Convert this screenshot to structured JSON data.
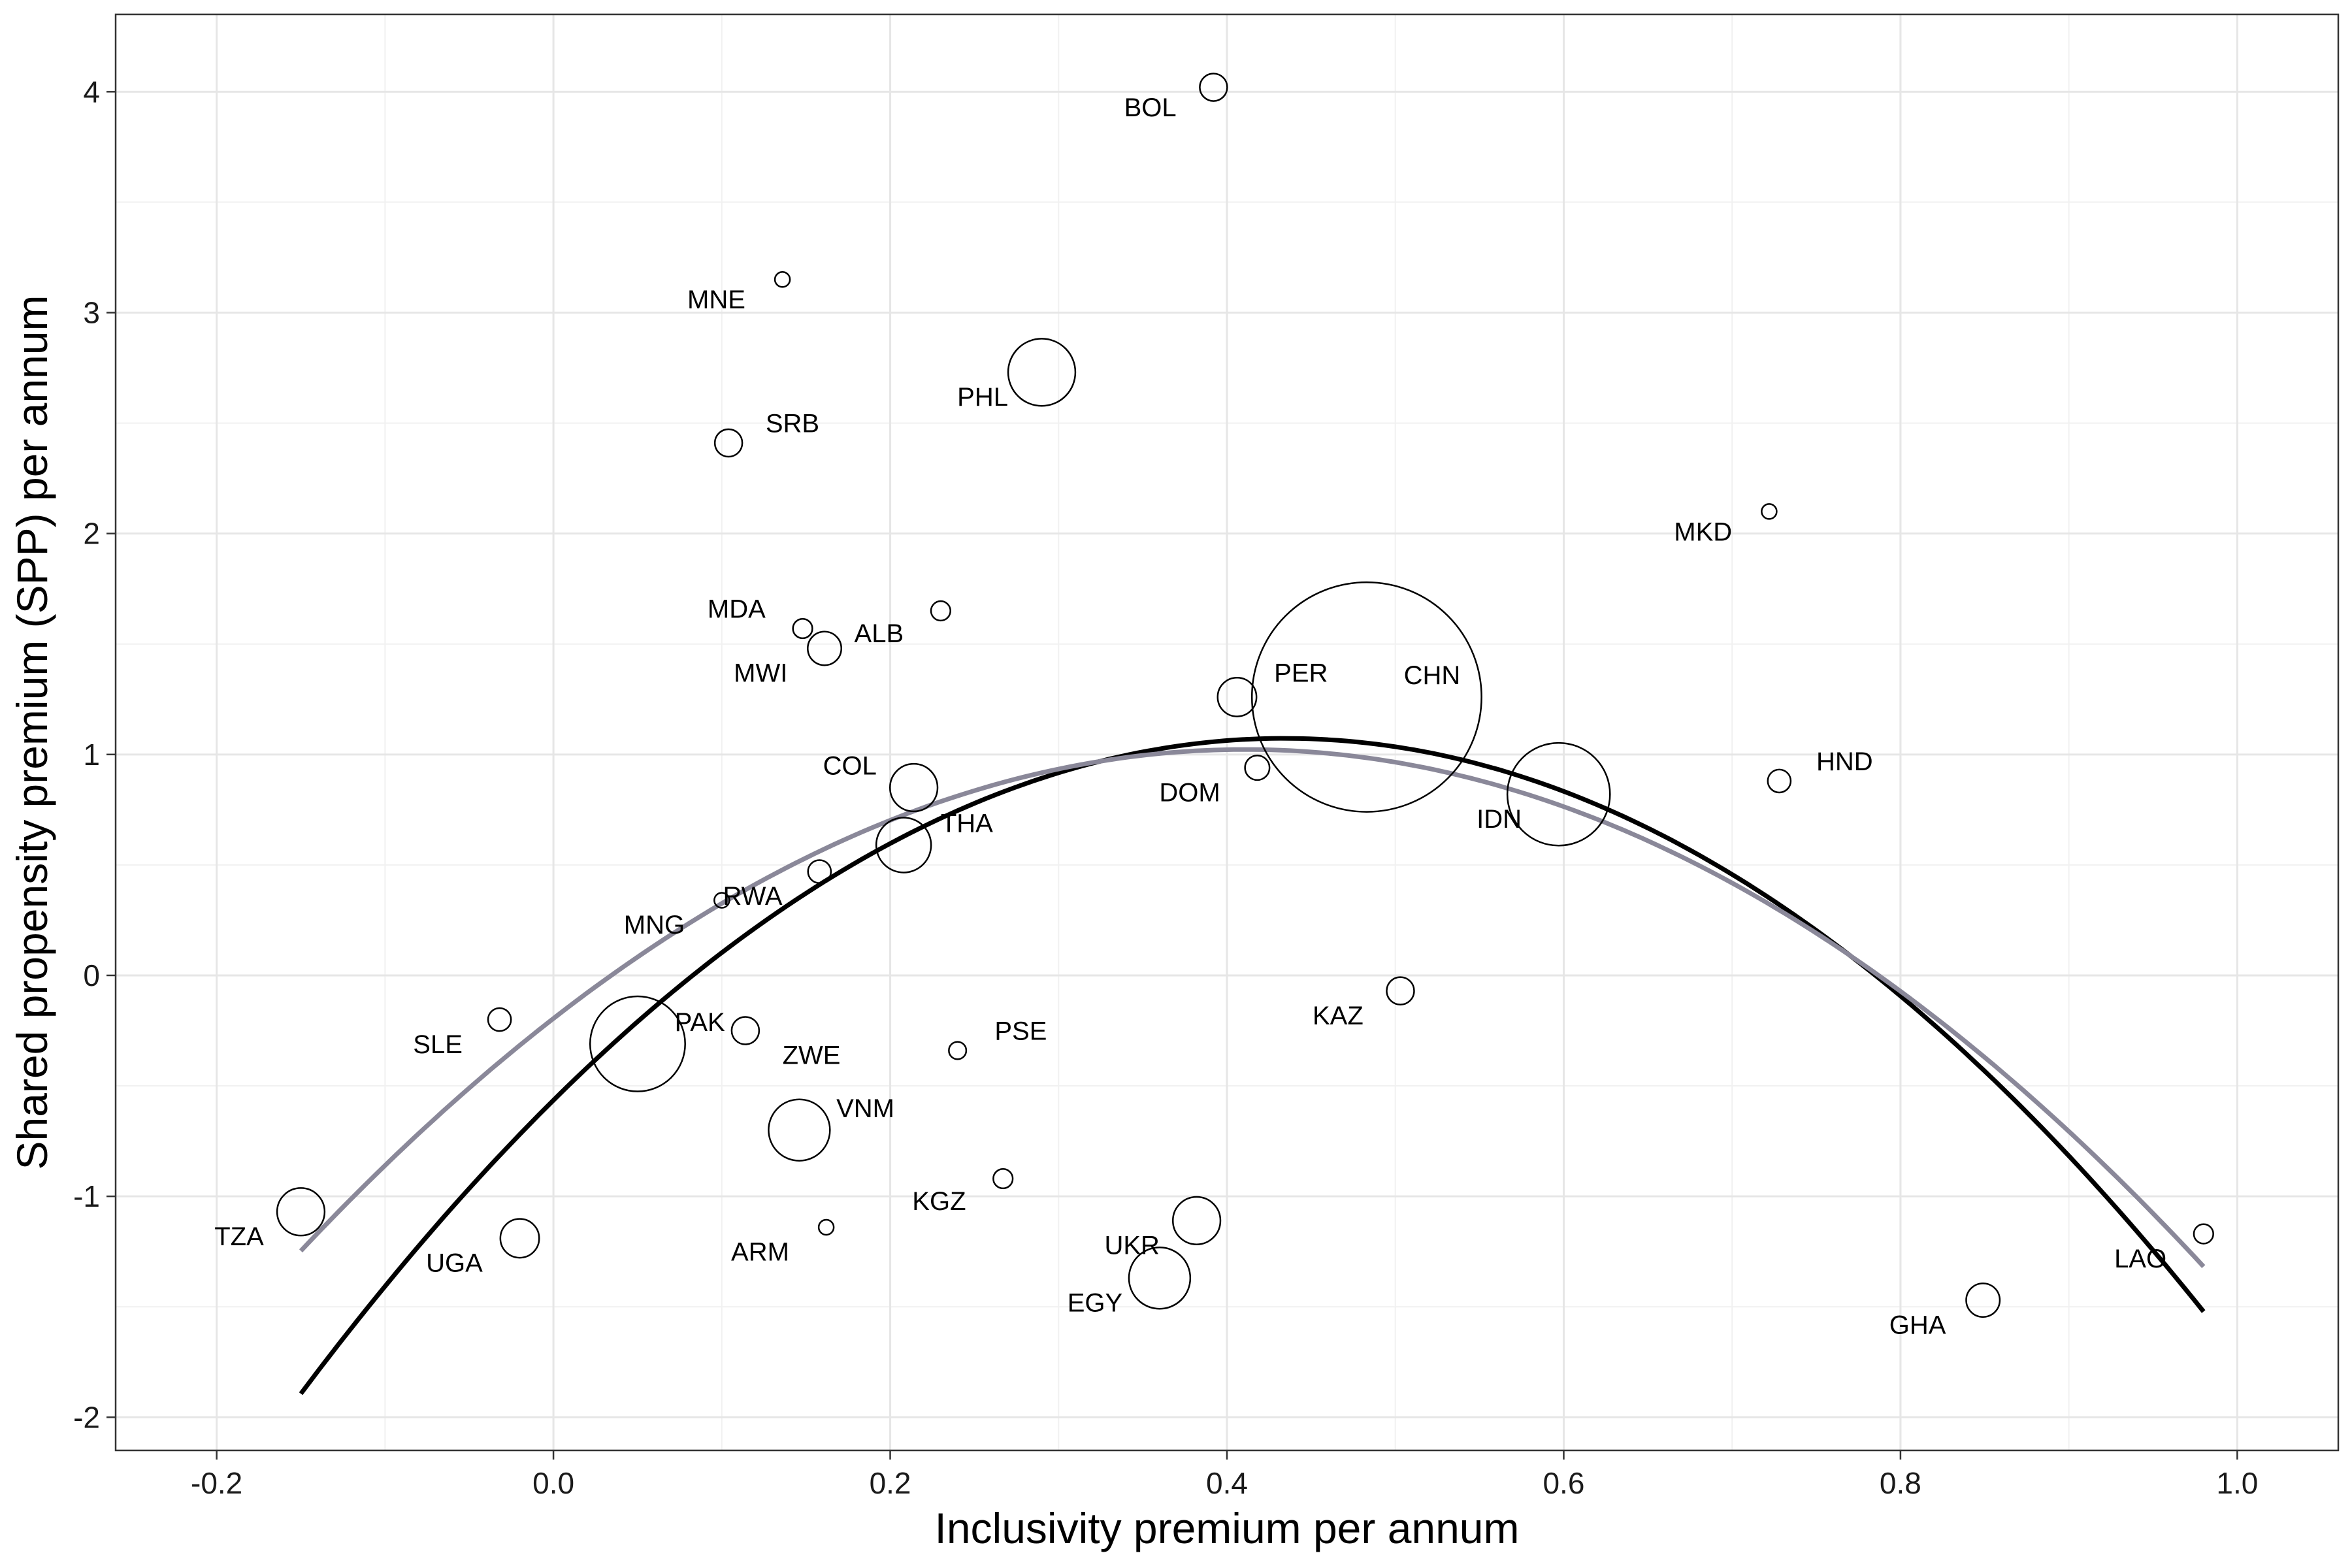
{
  "chart_data": {
    "type": "scatter",
    "title": "",
    "xlabel": "Inclusivity premium per annum",
    "ylabel": "Shared propensity premium (SPP) per annum",
    "xlim": [
      -0.26,
      1.06
    ],
    "ylim": [
      -2.15,
      4.35
    ],
    "x_ticks": [
      -0.2,
      0.0,
      0.2,
      0.4,
      0.6,
      0.8,
      1.0
    ],
    "x_tick_labels": [
      "-0.2",
      "0.0",
      "0.2",
      "0.4",
      "0.6",
      "0.8",
      "1.0"
    ],
    "y_ticks": [
      -2,
      -1,
      0,
      1,
      2,
      3,
      4
    ],
    "y_tick_labels": [
      "-2",
      "-1",
      "0",
      "1",
      "2",
      "3",
      "4"
    ],
    "grid": true,
    "legend": "none",
    "colors": {
      "black_fit": "#000000",
      "grey_fit": "#8a8899",
      "point_stroke": "#000000"
    },
    "points": [
      {
        "label": "BOL",
        "x": 0.392,
        "y": 4.02,
        "size": 1,
        "label_dx": -0.022,
        "label_dy": -0.09
      },
      {
        "label": "MNE",
        "x": 0.136,
        "y": 3.15,
        "size": 0.3,
        "label_dx": -0.022,
        "label_dy": -0.09
      },
      {
        "label": "PHL",
        "x": 0.29,
        "y": 2.73,
        "size": 6,
        "label_dx": -0.02,
        "label_dy": -0.11
      },
      {
        "label": "SRB",
        "x": 0.104,
        "y": 2.41,
        "size": 1,
        "label_dx": 0.022,
        "label_dy": 0.09
      },
      {
        "label": "MKD",
        "x": 0.722,
        "y": 2.1,
        "size": 0.3,
        "label_dx": -0.022,
        "label_dy": -0.09
      },
      {
        "label": "ALB",
        "x": 0.23,
        "y": 1.65,
        "size": 0.5,
        "label_dx": -0.022,
        "label_dy": -0.1
      },
      {
        "label": "MDA",
        "x": 0.148,
        "y": 1.57,
        "size": 0.5,
        "label_dx": -0.022,
        "label_dy": 0.09
      },
      {
        "label": "MWI",
        "x": 0.161,
        "y": 1.48,
        "size": 1.5,
        "label_dx": -0.022,
        "label_dy": -0.11
      },
      {
        "label": "PER",
        "x": 0.406,
        "y": 1.26,
        "size": 2,
        "label_dx": 0.022,
        "label_dy": 0.11
      },
      {
        "label": "CHN",
        "x": 0.483,
        "y": 1.26,
        "size": 70,
        "label_dx": 0.022,
        "label_dy": 0.1
      },
      {
        "label": "HND",
        "x": 0.728,
        "y": 0.88,
        "size": 0.7,
        "label_dx": 0.022,
        "label_dy": 0.09
      },
      {
        "label": "COL",
        "x": 0.214,
        "y": 0.85,
        "size": 3,
        "label_dx": -0.022,
        "label_dy": 0.1
      },
      {
        "label": "DOM",
        "x": 0.418,
        "y": 0.94,
        "size": 0.8,
        "label_dx": -0.022,
        "label_dy": -0.11
      },
      {
        "label": "IDN",
        "x": 0.597,
        "y": 0.82,
        "size": 14,
        "label_dx": -0.022,
        "label_dy": -0.11
      },
      {
        "label": "THA",
        "x": 0.208,
        "y": 0.59,
        "size": 4,
        "label_dx": 0.022,
        "label_dy": 0.1
      },
      {
        "label": "RWA",
        "x": 0.158,
        "y": 0.47,
        "size": 0.7,
        "label_dx": -0.022,
        "label_dy": -0.11
      },
      {
        "label": "MNG",
        "x": 0.1,
        "y": 0.34,
        "size": 0.3,
        "label_dx": -0.022,
        "label_dy": -0.11
      },
      {
        "label": "SLE",
        "x": -0.032,
        "y": -0.2,
        "size": 0.7,
        "label_dx": -0.022,
        "label_dy": -0.11
      },
      {
        "label": "PAK",
        "x": 0.05,
        "y": -0.31,
        "size": 12,
        "label_dx": 0.022,
        "label_dy": 0.1
      },
      {
        "label": "ZWE",
        "x": 0.114,
        "y": -0.25,
        "size": 1,
        "label_dx": 0.022,
        "label_dy": -0.11
      },
      {
        "label": "PSE",
        "x": 0.24,
        "y": -0.34,
        "size": 0.4,
        "label_dx": 0.022,
        "label_dy": 0.09
      },
      {
        "label": "KAZ",
        "x": 0.503,
        "y": -0.07,
        "size": 1,
        "label_dx": -0.022,
        "label_dy": -0.11
      },
      {
        "label": "VNM",
        "x": 0.146,
        "y": -0.7,
        "size": 5,
        "label_dx": 0.022,
        "label_dy": 0.1
      },
      {
        "label": "KGZ",
        "x": 0.267,
        "y": -0.92,
        "size": 0.5,
        "label_dx": -0.022,
        "label_dy": -0.1
      },
      {
        "label": "TZA",
        "x": -0.15,
        "y": -1.07,
        "size": 3,
        "label_dx": -0.022,
        "label_dy": -0.11
      },
      {
        "label": "UKR",
        "x": 0.382,
        "y": -1.11,
        "size": 3,
        "label_dx": -0.022,
        "label_dy": -0.11
      },
      {
        "label": "ARM",
        "x": 0.162,
        "y": -1.14,
        "size": 0.3,
        "label_dx": -0.022,
        "label_dy": -0.11
      },
      {
        "label": "UGA",
        "x": -0.02,
        "y": -1.19,
        "size": 2,
        "label_dx": -0.022,
        "label_dy": -0.11
      },
      {
        "label": "LAO",
        "x": 0.98,
        "y": -1.17,
        "size": 0.5,
        "label_dx": -0.022,
        "label_dy": -0.11
      },
      {
        "label": "EGY",
        "x": 0.36,
        "y": -1.37,
        "size": 5,
        "label_dx": -0.022,
        "label_dy": -0.11
      },
      {
        "label": "GHA",
        "x": 0.849,
        "y": -1.47,
        "size": 1.5,
        "label_dx": -0.022,
        "label_dy": -0.11
      }
    ],
    "fits": [
      {
        "color": "#000000",
        "x_range": [
          -0.15,
          0.98
        ],
        "coef": [
          -0.565,
          7.55,
          -8.7
        ]
      },
      {
        "color": "#8a8899",
        "x_range": [
          -0.15,
          0.98
        ],
        "coef": [
          -0.195,
          5.93,
          -7.22
        ]
      }
    ]
  }
}
